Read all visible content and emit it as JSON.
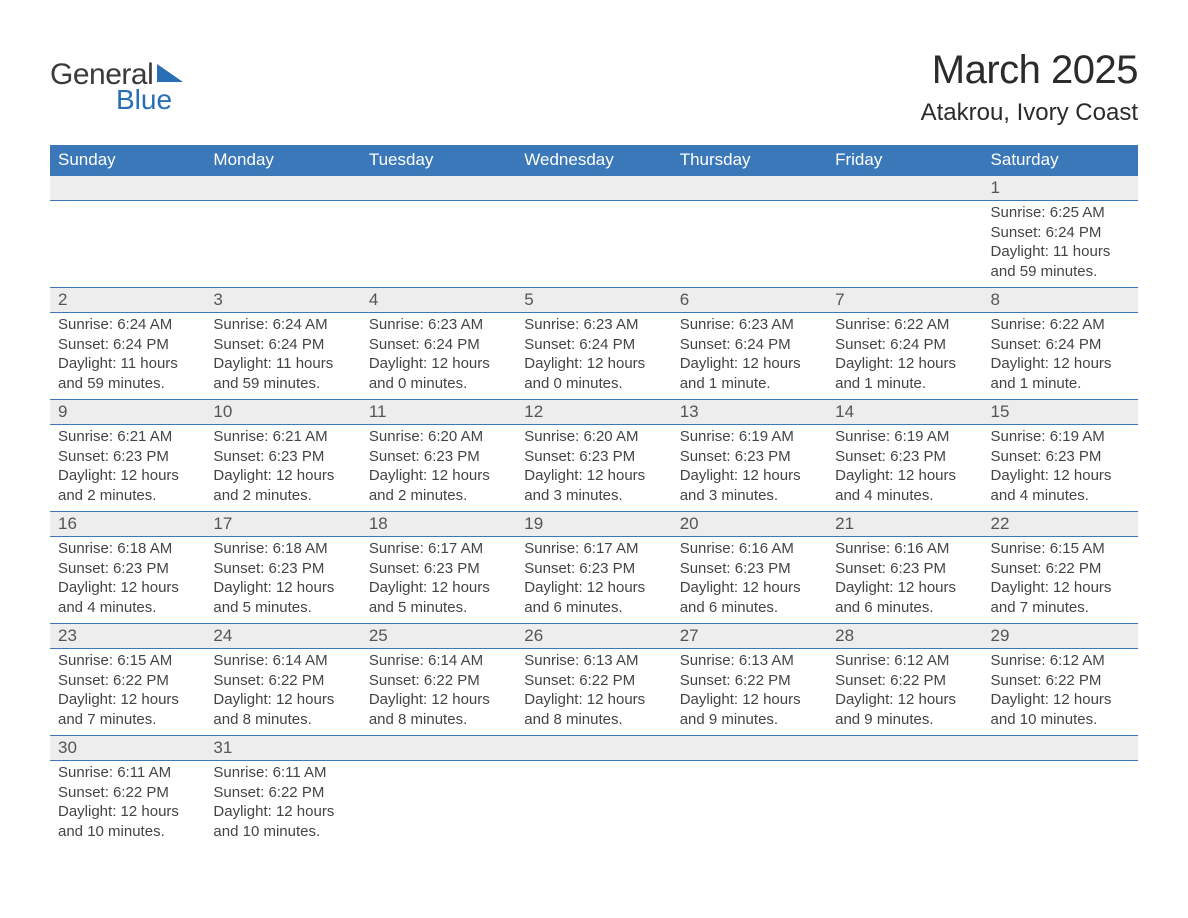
{
  "logo": {
    "line1": "General",
    "line2": "Blue"
  },
  "title": {
    "month": "March 2025",
    "location": "Atakrou, Ivory Coast"
  },
  "colors": {
    "header_bg": "#3a78b9",
    "header_text": "#ffffff",
    "daynum_bg": "#ededed",
    "daynum_text": "#555555",
    "body_text": "#444444",
    "row_border": "#3a78b9",
    "page_bg": "#ffffff",
    "logo_blue": "#2a6fb5",
    "logo_dark": "#3a3a3a"
  },
  "typography": {
    "title_month_pt": 40,
    "title_loc_pt": 24,
    "dayhead_pt": 17,
    "daynum_pt": 17,
    "body_pt": 15,
    "logo_pt": 30
  },
  "days_of_week": [
    "Sunday",
    "Monday",
    "Tuesday",
    "Wednesday",
    "Thursday",
    "Friday",
    "Saturday"
  ],
  "weeks": [
    [
      {
        "n": "",
        "sr": "",
        "ss": "",
        "dl": ""
      },
      {
        "n": "",
        "sr": "",
        "ss": "",
        "dl": ""
      },
      {
        "n": "",
        "sr": "",
        "ss": "",
        "dl": ""
      },
      {
        "n": "",
        "sr": "",
        "ss": "",
        "dl": ""
      },
      {
        "n": "",
        "sr": "",
        "ss": "",
        "dl": ""
      },
      {
        "n": "",
        "sr": "",
        "ss": "",
        "dl": ""
      },
      {
        "n": "1",
        "sr": "Sunrise: 6:25 AM",
        "ss": "Sunset: 6:24 PM",
        "dl": "Daylight: 11 hours and 59 minutes."
      }
    ],
    [
      {
        "n": "2",
        "sr": "Sunrise: 6:24 AM",
        "ss": "Sunset: 6:24 PM",
        "dl": "Daylight: 11 hours and 59 minutes."
      },
      {
        "n": "3",
        "sr": "Sunrise: 6:24 AM",
        "ss": "Sunset: 6:24 PM",
        "dl": "Daylight: 11 hours and 59 minutes."
      },
      {
        "n": "4",
        "sr": "Sunrise: 6:23 AM",
        "ss": "Sunset: 6:24 PM",
        "dl": "Daylight: 12 hours and 0 minutes."
      },
      {
        "n": "5",
        "sr": "Sunrise: 6:23 AM",
        "ss": "Sunset: 6:24 PM",
        "dl": "Daylight: 12 hours and 0 minutes."
      },
      {
        "n": "6",
        "sr": "Sunrise: 6:23 AM",
        "ss": "Sunset: 6:24 PM",
        "dl": "Daylight: 12 hours and 1 minute."
      },
      {
        "n": "7",
        "sr": "Sunrise: 6:22 AM",
        "ss": "Sunset: 6:24 PM",
        "dl": "Daylight: 12 hours and 1 minute."
      },
      {
        "n": "8",
        "sr": "Sunrise: 6:22 AM",
        "ss": "Sunset: 6:24 PM",
        "dl": "Daylight: 12 hours and 1 minute."
      }
    ],
    [
      {
        "n": "9",
        "sr": "Sunrise: 6:21 AM",
        "ss": "Sunset: 6:23 PM",
        "dl": "Daylight: 12 hours and 2 minutes."
      },
      {
        "n": "10",
        "sr": "Sunrise: 6:21 AM",
        "ss": "Sunset: 6:23 PM",
        "dl": "Daylight: 12 hours and 2 minutes."
      },
      {
        "n": "11",
        "sr": "Sunrise: 6:20 AM",
        "ss": "Sunset: 6:23 PM",
        "dl": "Daylight: 12 hours and 2 minutes."
      },
      {
        "n": "12",
        "sr": "Sunrise: 6:20 AM",
        "ss": "Sunset: 6:23 PM",
        "dl": "Daylight: 12 hours and 3 minutes."
      },
      {
        "n": "13",
        "sr": "Sunrise: 6:19 AM",
        "ss": "Sunset: 6:23 PM",
        "dl": "Daylight: 12 hours and 3 minutes."
      },
      {
        "n": "14",
        "sr": "Sunrise: 6:19 AM",
        "ss": "Sunset: 6:23 PM",
        "dl": "Daylight: 12 hours and 4 minutes."
      },
      {
        "n": "15",
        "sr": "Sunrise: 6:19 AM",
        "ss": "Sunset: 6:23 PM",
        "dl": "Daylight: 12 hours and 4 minutes."
      }
    ],
    [
      {
        "n": "16",
        "sr": "Sunrise: 6:18 AM",
        "ss": "Sunset: 6:23 PM",
        "dl": "Daylight: 12 hours and 4 minutes."
      },
      {
        "n": "17",
        "sr": "Sunrise: 6:18 AM",
        "ss": "Sunset: 6:23 PM",
        "dl": "Daylight: 12 hours and 5 minutes."
      },
      {
        "n": "18",
        "sr": "Sunrise: 6:17 AM",
        "ss": "Sunset: 6:23 PM",
        "dl": "Daylight: 12 hours and 5 minutes."
      },
      {
        "n": "19",
        "sr": "Sunrise: 6:17 AM",
        "ss": "Sunset: 6:23 PM",
        "dl": "Daylight: 12 hours and 6 minutes."
      },
      {
        "n": "20",
        "sr": "Sunrise: 6:16 AM",
        "ss": "Sunset: 6:23 PM",
        "dl": "Daylight: 12 hours and 6 minutes."
      },
      {
        "n": "21",
        "sr": "Sunrise: 6:16 AM",
        "ss": "Sunset: 6:23 PM",
        "dl": "Daylight: 12 hours and 6 minutes."
      },
      {
        "n": "22",
        "sr": "Sunrise: 6:15 AM",
        "ss": "Sunset: 6:22 PM",
        "dl": "Daylight: 12 hours and 7 minutes."
      }
    ],
    [
      {
        "n": "23",
        "sr": "Sunrise: 6:15 AM",
        "ss": "Sunset: 6:22 PM",
        "dl": "Daylight: 12 hours and 7 minutes."
      },
      {
        "n": "24",
        "sr": "Sunrise: 6:14 AM",
        "ss": "Sunset: 6:22 PM",
        "dl": "Daylight: 12 hours and 8 minutes."
      },
      {
        "n": "25",
        "sr": "Sunrise: 6:14 AM",
        "ss": "Sunset: 6:22 PM",
        "dl": "Daylight: 12 hours and 8 minutes."
      },
      {
        "n": "26",
        "sr": "Sunrise: 6:13 AM",
        "ss": "Sunset: 6:22 PM",
        "dl": "Daylight: 12 hours and 8 minutes."
      },
      {
        "n": "27",
        "sr": "Sunrise: 6:13 AM",
        "ss": "Sunset: 6:22 PM",
        "dl": "Daylight: 12 hours and 9 minutes."
      },
      {
        "n": "28",
        "sr": "Sunrise: 6:12 AM",
        "ss": "Sunset: 6:22 PM",
        "dl": "Daylight: 12 hours and 9 minutes."
      },
      {
        "n": "29",
        "sr": "Sunrise: 6:12 AM",
        "ss": "Sunset: 6:22 PM",
        "dl": "Daylight: 12 hours and 10 minutes."
      }
    ],
    [
      {
        "n": "30",
        "sr": "Sunrise: 6:11 AM",
        "ss": "Sunset: 6:22 PM",
        "dl": "Daylight: 12 hours and 10 minutes."
      },
      {
        "n": "31",
        "sr": "Sunrise: 6:11 AM",
        "ss": "Sunset: 6:22 PM",
        "dl": "Daylight: 12 hours and 10 minutes."
      },
      {
        "n": "",
        "sr": "",
        "ss": "",
        "dl": ""
      },
      {
        "n": "",
        "sr": "",
        "ss": "",
        "dl": ""
      },
      {
        "n": "",
        "sr": "",
        "ss": "",
        "dl": ""
      },
      {
        "n": "",
        "sr": "",
        "ss": "",
        "dl": ""
      },
      {
        "n": "",
        "sr": "",
        "ss": "",
        "dl": ""
      }
    ]
  ]
}
